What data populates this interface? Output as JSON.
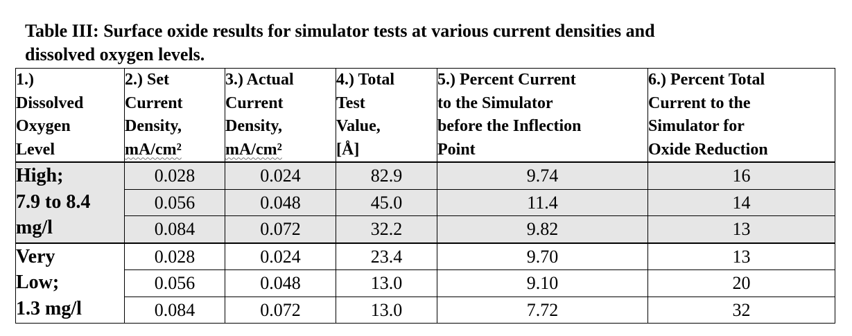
{
  "caption": {
    "line1": "Table III:  Surface oxide results for simulator tests at various current densities and",
    "line2": "dissolved oxygen levels."
  },
  "headers": [
    {
      "lines": [
        "1.)",
        "Dissolved",
        "Oxygen",
        "Level"
      ]
    },
    {
      "lines": [
        "2.) Set",
        "Current",
        "Density,",
        "mA/cm²"
      ]
    },
    {
      "lines": [
        "3.) Actual",
        "Current",
        "Density,",
        "mA/cm²"
      ]
    },
    {
      "lines": [
        "4.) Total",
        "Test",
        "Value,",
        "[Å]"
      ]
    },
    {
      "lines": [
        "5.) Percent Current",
        "to the Simulator",
        "before the Inflection",
        "Point"
      ]
    },
    {
      "lines": [
        "6.) Percent Total",
        "Current to the",
        "Simulator for",
        "Oxide Reduction"
      ]
    }
  ],
  "groups": [
    {
      "label_lines": [
        "High;",
        "7.9 to 8.4",
        "mg/l"
      ],
      "shaded": true,
      "rows": [
        [
          "0.028",
          "0.024",
          "82.9",
          "9.74",
          "16"
        ],
        [
          "0.056",
          "0.048",
          "45.0",
          "11.4",
          "14"
        ],
        [
          "0.084",
          "0.072",
          "32.2",
          "9.82",
          "13"
        ]
      ]
    },
    {
      "label_lines": [
        "Very",
        "Low;",
        "1.3 mg/l"
      ],
      "shaded": false,
      "rows": [
        [
          "0.028",
          "0.024",
          "23.4",
          "9.70",
          "13"
        ],
        [
          "0.056",
          "0.048",
          "13.0",
          "9.10",
          "20"
        ],
        [
          "0.084",
          "0.072",
          "13.0",
          "7.72",
          "32"
        ]
      ]
    }
  ]
}
